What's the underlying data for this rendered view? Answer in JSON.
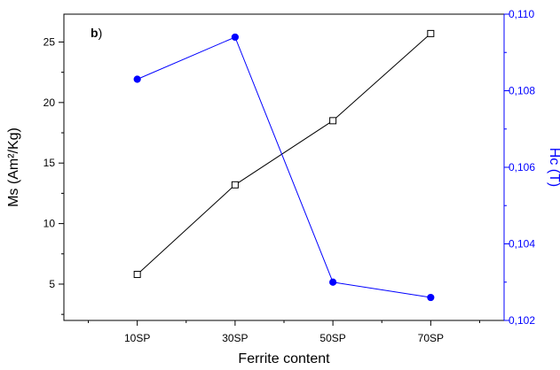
{
  "chart_data": {
    "type": "line",
    "panel_label": "b",
    "panel_label_suffix": ")",
    "categories": [
      "10SP",
      "30SP",
      "50SP",
      "70SP"
    ],
    "xlabel": "Ferrite content",
    "y_left": {
      "label": "Ms (Am²/Kg)",
      "ylim": [
        2.0,
        27.3
      ],
      "ticks": [
        5,
        10,
        15,
        20,
        25
      ],
      "tick_labels": [
        "5",
        "10",
        "15",
        "20",
        "25"
      ],
      "color": "#000000"
    },
    "y_right": {
      "label": "Hc (T)",
      "ylim": [
        0.102,
        0.11
      ],
      "ticks": [
        0.102,
        0.104,
        0.106,
        0.108,
        0.11
      ],
      "tick_labels": [
        "0,102",
        "0,104",
        "0,106",
        "0,108",
        "0,110"
      ],
      "color": "#0000ff"
    },
    "series": [
      {
        "axis": "left",
        "values": [
          5.8,
          13.2,
          18.5,
          25.7
        ],
        "color": "#000000",
        "marker": "open-square"
      },
      {
        "axis": "right",
        "values": [
          0.1083,
          0.1094,
          0.103,
          0.1026
        ],
        "color": "#0000ff",
        "marker": "filled-circle"
      }
    ],
    "grid": false,
    "legend": "none"
  }
}
